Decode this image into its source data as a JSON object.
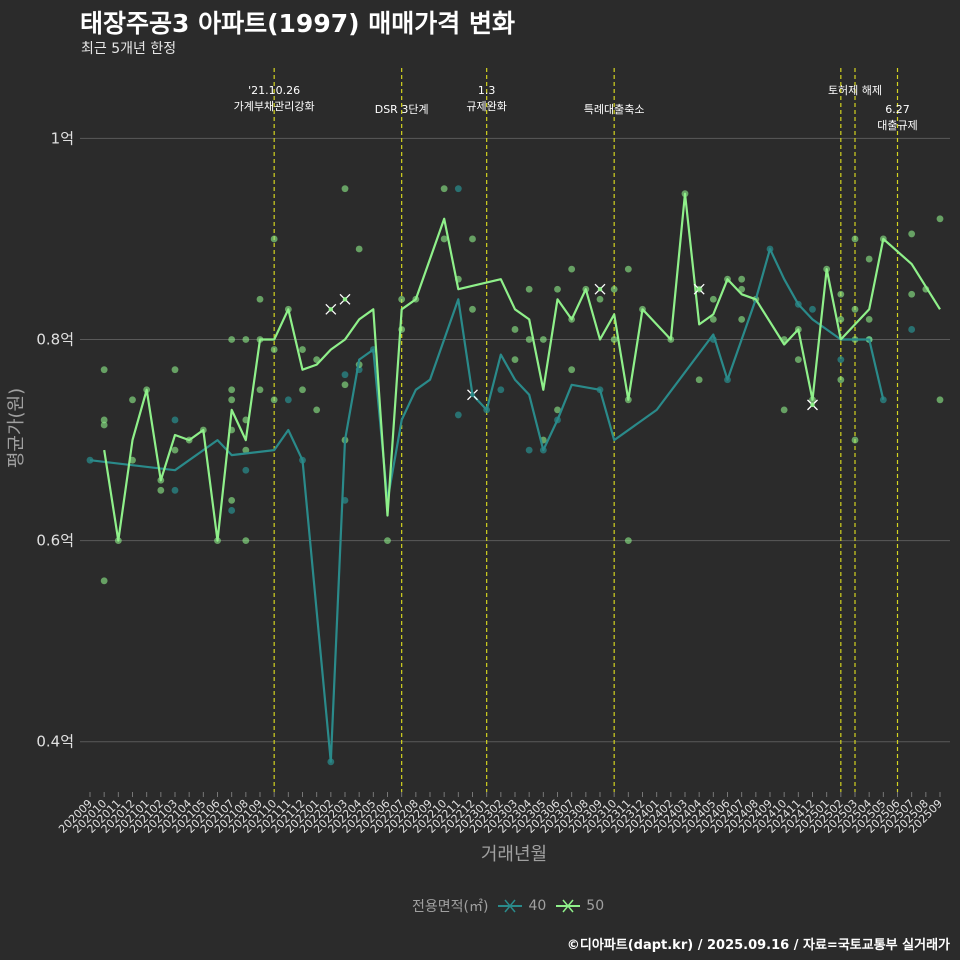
{
  "title": "태장주공3 아파트(1997) 매매가격 변화",
  "subtitle": "최근 5개년 한정",
  "caption": "©디아파트(dapt.kr) / 2025.09.16 / 자료=국토교통부 실거래가",
  "colors": {
    "background": "#2b2b2b",
    "grid": "#5a5a5a",
    "s40": "#2a8a8a",
    "s50": "#8ff08a",
    "event": "#d4d420"
  },
  "chart_data": {
    "type": "line",
    "xlabel": "거래년월",
    "ylabel": "평균가(원)",
    "ylim": [
      0.35,
      1.07
    ],
    "yticks": [
      {
        "value": 1.0,
        "label": "1억"
      },
      {
        "value": 0.8,
        "label": "0.8억"
      },
      {
        "value": 0.6,
        "label": "0.6억"
      },
      {
        "value": 0.4,
        "label": "0.4억"
      }
    ],
    "grid": true,
    "legend_position": "bottom",
    "legend_title": "전용면적(㎡)",
    "x": [
      "202009",
      "202010",
      "202011",
      "202012",
      "202101",
      "202102",
      "202103",
      "202104",
      "202105",
      "202106",
      "202107",
      "202108",
      "202109",
      "202110",
      "202111",
      "202112",
      "202201",
      "202202",
      "202203",
      "202204",
      "202205",
      "202206",
      "202207",
      "202208",
      "202209",
      "202210",
      "202211",
      "202212",
      "202301",
      "202302",
      "202303",
      "202304",
      "202305",
      "202306",
      "202307",
      "202308",
      "202309",
      "202310",
      "202311",
      "202312",
      "202401",
      "202402",
      "202403",
      "202404",
      "202405",
      "202406",
      "202407",
      "202408",
      "202409",
      "202410",
      "202411",
      "202412",
      "202501",
      "202502",
      "202503",
      "202504",
      "202505",
      "202506",
      "202507",
      "202508",
      "202509"
    ],
    "series": [
      {
        "name": "40",
        "color": "#2a8a8a",
        "points": [
          [
            "202009",
            0.68
          ],
          [
            "202103",
            0.67
          ],
          [
            "202106",
            0.7
          ],
          [
            "202107",
            0.685
          ],
          [
            "202110",
            0.69
          ],
          [
            "202111",
            0.71
          ],
          [
            "202112",
            0.68
          ],
          [
            "202202",
            0.38
          ],
          [
            "202203",
            0.7
          ],
          [
            "202204",
            0.78
          ],
          [
            "202205",
            0.79
          ],
          [
            "202206",
            0.64
          ],
          [
            "202207",
            0.72
          ],
          [
            "202208",
            0.75
          ],
          [
            "202209",
            0.76
          ],
          [
            "202211",
            0.84
          ],
          [
            "202212",
            0.745
          ],
          [
            "202301",
            0.73
          ],
          [
            "202302",
            0.785
          ],
          [
            "202303",
            0.76
          ],
          [
            "202304",
            0.745
          ],
          [
            "202305",
            0.69
          ],
          [
            "202306",
            0.72
          ],
          [
            "202307",
            0.755
          ],
          [
            "202309",
            0.75
          ],
          [
            "202310",
            0.7
          ],
          [
            "202401",
            0.73
          ],
          [
            "202405",
            0.805
          ],
          [
            "202406",
            0.76
          ],
          [
            "202408",
            0.84
          ],
          [
            "202409",
            0.89
          ],
          [
            "202410",
            0.86
          ],
          [
            "202411",
            0.835
          ],
          [
            "202412",
            0.82
          ],
          [
            "202502",
            0.8
          ],
          [
            "202504",
            0.8
          ],
          [
            "202505",
            0.74
          ]
        ]
      },
      {
        "name": "50",
        "color": "#8ff08a",
        "points": [
          [
            "202010",
            0.69
          ],
          [
            "202011",
            0.6
          ],
          [
            "202012",
            0.7
          ],
          [
            "202101",
            0.75
          ],
          [
            "202102",
            0.66
          ],
          [
            "202103",
            0.705
          ],
          [
            "202104",
            0.7
          ],
          [
            "202105",
            0.71
          ],
          [
            "202106",
            0.6
          ],
          [
            "202107",
            0.73
          ],
          [
            "202108",
            0.7
          ],
          [
            "202109",
            0.8
          ],
          [
            "202110",
            0.8
          ],
          [
            "202111",
            0.83
          ],
          [
            "202112",
            0.77
          ],
          [
            "202201",
            0.775
          ],
          [
            "202202",
            0.79
          ],
          [
            "202203",
            0.8
          ],
          [
            "202204",
            0.82
          ],
          [
            "202205",
            0.83
          ],
          [
            "202206",
            0.625
          ],
          [
            "202207",
            0.83
          ],
          [
            "202208",
            0.84
          ],
          [
            "202210",
            0.92
          ],
          [
            "202211",
            0.85
          ],
          [
            "202302",
            0.86
          ],
          [
            "202303",
            0.83
          ],
          [
            "202304",
            0.82
          ],
          [
            "202305",
            0.75
          ],
          [
            "202306",
            0.84
          ],
          [
            "202307",
            0.82
          ],
          [
            "202308",
            0.85
          ],
          [
            "202309",
            0.8
          ],
          [
            "202310",
            0.825
          ],
          [
            "202311",
            0.74
          ],
          [
            "202312",
            0.83
          ],
          [
            "202402",
            0.8
          ],
          [
            "202403",
            0.945
          ],
          [
            "202404",
            0.815
          ],
          [
            "202405",
            0.825
          ],
          [
            "202406",
            0.86
          ],
          [
            "202407",
            0.845
          ],
          [
            "202408",
            0.84
          ],
          [
            "202410",
            0.795
          ],
          [
            "202411",
            0.81
          ],
          [
            "202412",
            0.74
          ],
          [
            "202501",
            0.87
          ],
          [
            "202502",
            0.8
          ],
          [
            "202503",
            0.815
          ],
          [
            "202504",
            0.83
          ],
          [
            "202505",
            0.9
          ],
          [
            "202507",
            0.875
          ],
          [
            "202509",
            0.83
          ]
        ]
      }
    ],
    "scatter_40": [
      [
        "202009",
        0.68
      ],
      [
        "202103",
        0.72
      ],
      [
        "202103",
        0.65
      ],
      [
        "202107",
        0.63
      ],
      [
        "202108",
        0.67
      ],
      [
        "202111",
        0.74
      ],
      [
        "202112",
        0.68
      ],
      [
        "202202",
        0.38
      ],
      [
        "202203",
        0.64
      ],
      [
        "202203",
        0.765
      ],
      [
        "202204",
        0.77
      ],
      [
        "202205",
        0.79
      ],
      [
        "202211",
        0.725
      ],
      [
        "202211",
        0.95
      ],
      [
        "202301",
        0.73
      ],
      [
        "202302",
        0.75
      ],
      [
        "202304",
        0.69
      ],
      [
        "202305",
        0.69
      ],
      [
        "202306",
        0.72
      ],
      [
        "202309",
        0.75
      ],
      [
        "202405",
        0.8
      ],
      [
        "202406",
        0.76
      ],
      [
        "202409",
        0.89
      ],
      [
        "202411",
        0.835
      ],
      [
        "202412",
        0.83
      ],
      [
        "202502",
        0.78
      ],
      [
        "202504",
        0.8
      ],
      [
        "202505",
        0.74
      ],
      [
        "202507",
        0.81
      ]
    ],
    "scatter_50": [
      [
        "202010",
        0.77
      ],
      [
        "202010",
        0.72
      ],
      [
        "202010",
        0.715
      ],
      [
        "202010",
        0.56
      ],
      [
        "202011",
        0.6
      ],
      [
        "202012",
        0.74
      ],
      [
        "202012",
        0.68
      ],
      [
        "202101",
        0.75
      ],
      [
        "202102",
        0.65
      ],
      [
        "202102",
        0.66
      ],
      [
        "202103",
        0.77
      ],
      [
        "202103",
        0.69
      ],
      [
        "202104",
        0.7
      ],
      [
        "202105",
        0.71
      ],
      [
        "202106",
        0.6
      ],
      [
        "202107",
        0.8
      ],
      [
        "202107",
        0.74
      ],
      [
        "202107",
        0.75
      ],
      [
        "202107",
        0.71
      ],
      [
        "202107",
        0.64
      ],
      [
        "202108",
        0.8
      ],
      [
        "202108",
        0.72
      ],
      [
        "202108",
        0.69
      ],
      [
        "202108",
        0.6
      ],
      [
        "202109",
        0.84
      ],
      [
        "202109",
        0.8
      ],
      [
        "202109",
        0.75
      ],
      [
        "202110",
        0.9
      ],
      [
        "202110",
        0.79
      ],
      [
        "202110",
        0.74
      ],
      [
        "202111",
        0.83
      ],
      [
        "202112",
        0.79
      ],
      [
        "202112",
        0.75
      ],
      [
        "202201",
        0.78
      ],
      [
        "202201",
        0.73
      ],
      [
        "202203",
        0.95
      ],
      [
        "202203",
        0.7
      ],
      [
        "202203",
        0.755
      ],
      [
        "202204",
        0.89
      ],
      [
        "202204",
        0.775
      ],
      [
        "202206",
        0.6
      ],
      [
        "202207",
        0.84
      ],
      [
        "202207",
        0.81
      ],
      [
        "202208",
        0.84
      ],
      [
        "202210",
        0.95
      ],
      [
        "202210",
        0.9
      ],
      [
        "202211",
        0.86
      ],
      [
        "202212",
        0.9
      ],
      [
        "202212",
        0.83
      ],
      [
        "202303",
        0.78
      ],
      [
        "202303",
        0.81
      ],
      [
        "202304",
        0.85
      ],
      [
        "202304",
        0.8
      ],
      [
        "202305",
        0.8
      ],
      [
        "202305",
        0.7
      ],
      [
        "202306",
        0.85
      ],
      [
        "202306",
        0.73
      ],
      [
        "202307",
        0.87
      ],
      [
        "202307",
        0.82
      ],
      [
        "202307",
        0.77
      ],
      [
        "202308",
        0.85
      ],
      [
        "202309",
        0.84
      ],
      [
        "202310",
        0.85
      ],
      [
        "202310",
        0.8
      ],
      [
        "202311",
        0.87
      ],
      [
        "202311",
        0.6
      ],
      [
        "202311",
        0.74
      ],
      [
        "202312",
        0.83
      ],
      [
        "202402",
        0.8
      ],
      [
        "202403",
        0.945
      ],
      [
        "202404",
        0.85
      ],
      [
        "202404",
        0.76
      ],
      [
        "202405",
        0.84
      ],
      [
        "202405",
        0.82
      ],
      [
        "202406",
        0.86
      ],
      [
        "202407",
        0.86
      ],
      [
        "202407",
        0.85
      ],
      [
        "202407",
        0.82
      ],
      [
        "202408",
        0.84
      ],
      [
        "202410",
        0.8
      ],
      [
        "202410",
        0.73
      ],
      [
        "202411",
        0.81
      ],
      [
        "202411",
        0.78
      ],
      [
        "202412",
        0.74
      ],
      [
        "202501",
        0.87
      ],
      [
        "202502",
        0.845
      ],
      [
        "202502",
        0.82
      ],
      [
        "202502",
        0.76
      ],
      [
        "202503",
        0.9
      ],
      [
        "202503",
        0.83
      ],
      [
        "202503",
        0.8
      ],
      [
        "202503",
        0.7
      ],
      [
        "202504",
        0.88
      ],
      [
        "202504",
        0.82
      ],
      [
        "202504",
        0.8
      ],
      [
        "202505",
        0.9
      ],
      [
        "202507",
        0.905
      ],
      [
        "202507",
        0.845
      ],
      [
        "202508",
        0.85
      ],
      [
        "202509",
        0.92
      ],
      [
        "202509",
        0.74
      ]
    ],
    "cross_markers": [
      [
        "50",
        "202202",
        0.83
      ],
      [
        "50",
        "202203",
        0.84
      ],
      [
        "40",
        "202212",
        0.745
      ],
      [
        "50",
        "202309",
        0.85
      ],
      [
        "50",
        "202404",
        0.85
      ],
      [
        "50",
        "202412",
        0.735
      ]
    ],
    "events": [
      {
        "x": "202110",
        "lines": [
          "'21.10.26",
          "가계부채관리강화"
        ],
        "row": 0
      },
      {
        "x": "202207",
        "lines": [
          "DSR 3단계"
        ],
        "row": 1
      },
      {
        "x": "202301",
        "lines": [
          "1.3",
          "규제완화"
        ],
        "row": 0
      },
      {
        "x": "202310",
        "lines": [
          "특례대출축소"
        ],
        "row": 1
      },
      {
        "x": "202503",
        "lines": [
          "토허제 해제"
        ],
        "row": 0
      },
      {
        "x": "202506",
        "lines": [
          "6.27",
          "대출규제"
        ],
        "row": 1
      },
      {
        "x": "202502",
        "lines": [],
        "row": 0
      }
    ]
  }
}
